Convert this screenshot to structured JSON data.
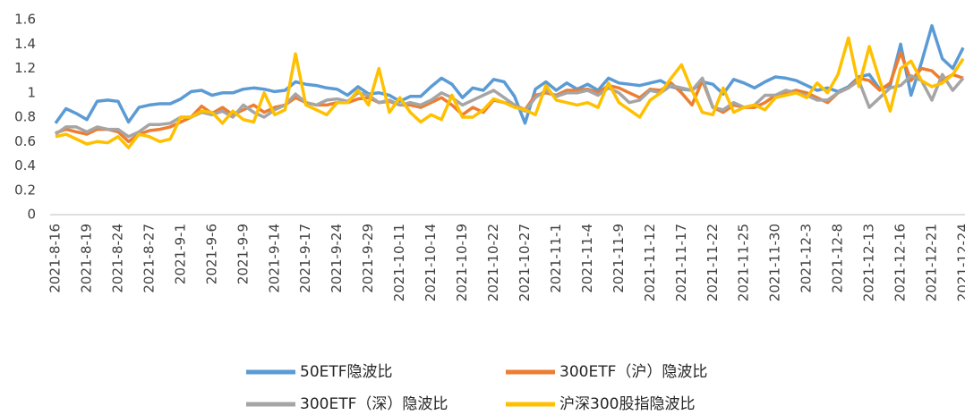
{
  "chart_data": {
    "type": "line",
    "categories": [
      "2021-8-16",
      null,
      null,
      "2021-8-19",
      null,
      null,
      "2021-8-24",
      null,
      null,
      "2021-8-27",
      null,
      null,
      "2021-9-1",
      null,
      null,
      "2021-9-6",
      null,
      null,
      "2021-9-9",
      null,
      null,
      "2021-9-14",
      null,
      null,
      "2021-9-17",
      null,
      null,
      "2021-9-24",
      null,
      null,
      "2021-9-29",
      null,
      null,
      "2021-10-11",
      null,
      null,
      "2021-10-14",
      null,
      null,
      "2021-10-19",
      null,
      null,
      "2021-10-22",
      null,
      null,
      "2021-10-27",
      null,
      null,
      "2021-11-1",
      null,
      null,
      "2021-11-4",
      null,
      null,
      "2021-11-9",
      null,
      null,
      "2021-11-12",
      null,
      null,
      "2021-11-17",
      null,
      null,
      "2021-11-22",
      null,
      null,
      "2021-11-25",
      null,
      null,
      "2021-11-30",
      null,
      null,
      "2021-12-3",
      null,
      null,
      "2021-12-8",
      null,
      null,
      "2021-12-13",
      null,
      null,
      "2021-12-16",
      null,
      null,
      "2021-12-21",
      null,
      null,
      "2021-12-24"
    ],
    "series": [
      {
        "name": "50ETF隐波比",
        "color": "#5B9BD5",
        "values": [
          0.75,
          0.87,
          0.83,
          0.78,
          0.93,
          0.94,
          0.93,
          0.76,
          0.88,
          0.9,
          0.91,
          0.91,
          0.95,
          1.01,
          1.02,
          0.98,
          1.0,
          1.0,
          1.03,
          1.04,
          1.03,
          1.01,
          1.02,
          1.09,
          1.07,
          1.06,
          1.04,
          1.03,
          0.98,
          1.05,
          0.99,
          1.0,
          0.98,
          0.93,
          0.97,
          0.97,
          1.05,
          1.12,
          1.07,
          0.96,
          1.04,
          1.02,
          1.11,
          1.09,
          0.97,
          0.75,
          1.03,
          1.09,
          1.02,
          1.08,
          1.03,
          1.07,
          1.02,
          1.12,
          1.08,
          1.07,
          1.06,
          1.08,
          1.1,
          1.05,
          1.03,
          1.02,
          1.09,
          1.07,
          0.99,
          1.11,
          1.08,
          1.04,
          1.09,
          1.13,
          1.12,
          1.1,
          1.06,
          1.02,
          1.04,
          1.01,
          1.05,
          1.13,
          1.15,
          1.03,
          1.06,
          1.4,
          0.98,
          1.25,
          1.55,
          1.28,
          1.2,
          1.37
        ]
      },
      {
        "name": "300ETF（沪）隐波比",
        "color": "#ED7D31",
        "values": [
          0.67,
          0.7,
          0.68,
          0.66,
          0.7,
          0.7,
          0.68,
          0.6,
          0.66,
          0.69,
          0.7,
          0.72,
          0.76,
          0.8,
          0.89,
          0.83,
          0.88,
          0.82,
          0.86,
          0.9,
          0.84,
          0.88,
          0.9,
          0.96,
          0.92,
          0.9,
          0.9,
          0.92,
          0.92,
          0.95,
          0.96,
          0.92,
          0.93,
          0.9,
          0.9,
          0.88,
          0.92,
          0.96,
          0.9,
          0.82,
          0.88,
          0.84,
          0.94,
          0.92,
          0.9,
          0.86,
          0.98,
          1.0,
          0.98,
          1.02,
          1.02,
          1.03,
          1.0,
          1.06,
          1.04,
          1.0,
          0.96,
          1.03,
          1.02,
          1.08,
          1.0,
          0.9,
          1.1,
          0.88,
          0.84,
          0.9,
          0.88,
          0.88,
          0.92,
          0.98,
          1.0,
          1.02,
          1.0,
          0.96,
          0.92,
          1.0,
          1.04,
          1.12,
          1.1,
          1.02,
          1.08,
          1.33,
          1.1,
          1.2,
          1.18,
          1.1,
          1.15,
          1.12
        ]
      },
      {
        "name": "300ETF（深）隐波比",
        "color": "#A5A5A5",
        "values": [
          0.66,
          0.72,
          0.72,
          0.68,
          0.72,
          0.7,
          0.7,
          0.64,
          0.68,
          0.74,
          0.74,
          0.75,
          0.8,
          0.8,
          0.84,
          0.82,
          0.85,
          0.8,
          0.9,
          0.84,
          0.8,
          0.86,
          0.9,
          0.99,
          0.92,
          0.9,
          0.94,
          0.95,
          0.93,
          1.0,
          0.98,
          0.92,
          0.94,
          0.9,
          0.92,
          0.9,
          0.94,
          1.0,
          0.96,
          0.9,
          0.94,
          0.98,
          1.02,
          0.96,
          0.9,
          0.85,
          0.96,
          1.02,
          0.97,
          1.0,
          1.0,
          1.02,
          0.98,
          1.04,
          1.0,
          0.92,
          0.94,
          1.02,
          1.0,
          1.06,
          1.04,
          1.02,
          1.12,
          0.88,
          0.86,
          0.92,
          0.88,
          0.9,
          0.98,
          0.98,
          1.02,
          1.0,
          0.98,
          0.94,
          0.94,
          1.0,
          1.04,
          1.1,
          0.88,
          0.96,
          1.04,
          1.06,
          1.14,
          1.1,
          0.94,
          1.15,
          1.02,
          1.12
        ]
      },
      {
        "name": "沪深300股指隐波比",
        "color": "#FFC000",
        "values": [
          0.64,
          0.66,
          0.62,
          0.58,
          0.6,
          0.59,
          0.64,
          0.55,
          0.66,
          0.64,
          0.6,
          0.62,
          0.8,
          0.8,
          0.85,
          0.84,
          0.75,
          0.85,
          0.78,
          0.76,
          1.0,
          0.82,
          0.86,
          1.32,
          0.9,
          0.86,
          0.82,
          0.92,
          0.92,
          1.02,
          0.9,
          1.2,
          0.84,
          0.96,
          0.84,
          0.76,
          0.82,
          0.78,
          0.98,
          0.8,
          0.8,
          0.86,
          0.95,
          0.92,
          0.88,
          0.86,
          0.82,
          1.06,
          0.94,
          0.92,
          0.9,
          0.92,
          0.88,
          1.08,
          0.92,
          0.86,
          0.8,
          0.94,
          1.0,
          1.12,
          1.23,
          1.02,
          0.84,
          0.82,
          1.04,
          0.84,
          0.88,
          0.9,
          0.86,
          0.96,
          0.98,
          1.0,
          0.96,
          1.08,
          1.0,
          1.15,
          1.45,
          1.05,
          1.38,
          1.1,
          0.85,
          1.2,
          1.26,
          1.1,
          1.05,
          1.08,
          1.15,
          1.28
        ]
      }
    ],
    "ylim": [
      0,
      1.6
    ],
    "yticks": [
      0,
      0.2,
      0.4,
      0.6,
      0.8,
      1,
      1.2,
      1.4,
      1.6
    ],
    "grid": false,
    "legend": "bottom"
  }
}
